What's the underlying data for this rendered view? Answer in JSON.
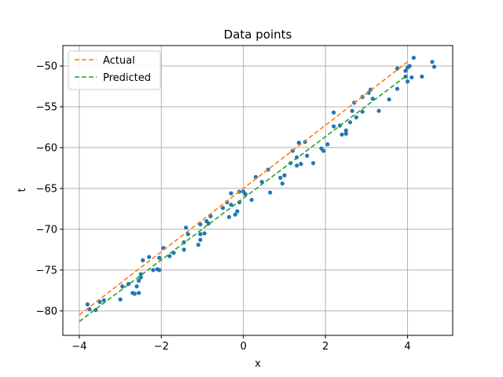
{
  "chart_data": {
    "type": "scatter",
    "title": "Data points",
    "xlabel": "x",
    "ylabel": "t",
    "xlim": [
      -4.4,
      5.1
    ],
    "ylim": [
      -83,
      -47.5
    ],
    "xticks": [
      -4,
      -2,
      0,
      2,
      4
    ],
    "xtick_labels": [
      "−4",
      "−2",
      "0",
      "2",
      "4"
    ],
    "yticks": [
      -80,
      -75,
      -70,
      -65,
      -60,
      -55,
      -50
    ],
    "ytick_labels": [
      "−80",
      "−75",
      "−70",
      "−65",
      "−60",
      "−55",
      "−50"
    ],
    "grid": true,
    "legend": {
      "placement": "top-left",
      "entries": [
        "Actual",
        "Predicted"
      ]
    },
    "colors": {
      "points": "#1f77b4",
      "actual": "#ff7f0e",
      "predicted": "#2ca02c"
    },
    "series": [
      {
        "name": "Actual",
        "kind": "dashed-line",
        "x": [
          -4,
          4
        ],
        "y": [
          -80.5,
          -49.5
        ]
      },
      {
        "name": "Predicted",
        "kind": "dashed-line",
        "x": [
          -4,
          4
        ],
        "y": [
          -81.3,
          -51.1
        ]
      },
      {
        "kind": "scatter",
        "points": [
          [
            -3.8,
            -79.2
          ],
          [
            -3.75,
            -79.8
          ],
          [
            -3.6,
            -79.9
          ],
          [
            -3.5,
            -78.9
          ],
          [
            -3.4,
            -78.7
          ],
          [
            -3.0,
            -78.6
          ],
          [
            -2.95,
            -77.0
          ],
          [
            -2.8,
            -76.7
          ],
          [
            -2.7,
            -77.8
          ],
          [
            -2.65,
            -77.9
          ],
          [
            -2.6,
            -77.0
          ],
          [
            -2.55,
            -77.8
          ],
          [
            -2.55,
            -76.3
          ],
          [
            -2.5,
            -75.9
          ],
          [
            -2.5,
            -75.5
          ],
          [
            -2.45,
            -73.8
          ],
          [
            -2.3,
            -73.4
          ],
          [
            -2.2,
            -75.0
          ],
          [
            -2.1,
            -74.9
          ],
          [
            -2.05,
            -75.0
          ],
          [
            -2.05,
            -73.5
          ],
          [
            -1.95,
            -72.3
          ],
          [
            -1.8,
            -73.3
          ],
          [
            -1.7,
            -72.9
          ],
          [
            -1.45,
            -72.5
          ],
          [
            -1.45,
            -71.6
          ],
          [
            -1.4,
            -69.8
          ],
          [
            -1.35,
            -70.6
          ],
          [
            -1.1,
            -71.9
          ],
          [
            -1.05,
            -71.3
          ],
          [
            -1.05,
            -70.6
          ],
          [
            -1.05,
            -69.4
          ],
          [
            -0.95,
            -70.5
          ],
          [
            -0.9,
            -69.0
          ],
          [
            -0.85,
            -69.3
          ],
          [
            -0.8,
            -68.4
          ],
          [
            -0.5,
            -67.4
          ],
          [
            -0.4,
            -66.7
          ],
          [
            -0.35,
            -68.5
          ],
          [
            -0.3,
            -65.6
          ],
          [
            -0.3,
            -67.0
          ],
          [
            -0.2,
            -68.2
          ],
          [
            -0.15,
            -67.8
          ],
          [
            -0.1,
            -66.7
          ],
          [
            -0.1,
            -65.4
          ],
          [
            0.0,
            -65.4
          ],
          [
            0.05,
            -65.7
          ],
          [
            0.2,
            -66.4
          ],
          [
            0.3,
            -63.6
          ],
          [
            0.45,
            -64.2
          ],
          [
            0.6,
            -62.7
          ],
          [
            0.65,
            -65.5
          ],
          [
            0.9,
            -63.7
          ],
          [
            0.95,
            -64.4
          ],
          [
            1.0,
            -63.4
          ],
          [
            1.15,
            -61.9
          ],
          [
            1.2,
            -60.4
          ],
          [
            1.3,
            -62.2
          ],
          [
            1.3,
            -61.2
          ],
          [
            1.35,
            -59.4
          ],
          [
            1.4,
            -62.0
          ],
          [
            1.5,
            -59.3
          ],
          [
            1.55,
            -61.0
          ],
          [
            1.7,
            -61.9
          ],
          [
            1.9,
            -60.1
          ],
          [
            1.95,
            -60.4
          ],
          [
            2.05,
            -59.6
          ],
          [
            2.2,
            -57.4
          ],
          [
            2.2,
            -55.7
          ],
          [
            2.35,
            -57.3
          ],
          [
            2.4,
            -58.4
          ],
          [
            2.5,
            -57.9
          ],
          [
            2.5,
            -58.3
          ],
          [
            2.6,
            -56.9
          ],
          [
            2.65,
            -55.5
          ],
          [
            2.7,
            -54.5
          ],
          [
            2.75,
            -56.3
          ],
          [
            2.9,
            -55.6
          ],
          [
            2.9,
            -53.8
          ],
          [
            3.05,
            -53.3
          ],
          [
            3.1,
            -52.9
          ],
          [
            3.15,
            -54.0
          ],
          [
            3.3,
            -55.5
          ],
          [
            3.55,
            -54.1
          ],
          [
            3.75,
            -52.8
          ],
          [
            3.75,
            -50.3
          ],
          [
            3.95,
            -51.3
          ],
          [
            3.95,
            -50.6
          ],
          [
            4.0,
            -51.9
          ],
          [
            4.0,
            -50.2
          ],
          [
            4.05,
            -50.0
          ],
          [
            4.1,
            -51.4
          ],
          [
            4.15,
            -49.0
          ],
          [
            4.35,
            -51.3
          ],
          [
            4.6,
            -49.5
          ],
          [
            4.65,
            -50.1
          ]
        ]
      }
    ]
  }
}
